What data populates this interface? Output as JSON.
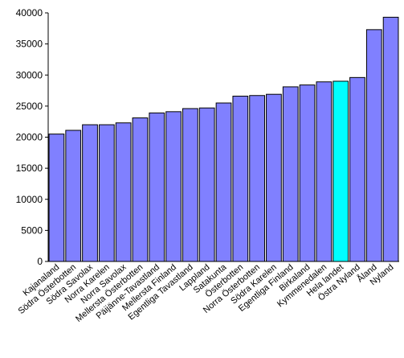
{
  "chart_data": {
    "type": "bar",
    "title": "",
    "xlabel": "",
    "ylabel": "",
    "ylim": [
      0,
      40000
    ],
    "yticks": [
      0,
      5000,
      10000,
      15000,
      20000,
      25000,
      30000,
      35000,
      40000
    ],
    "grid": false,
    "legend": "none",
    "categories": [
      "Kajanaland",
      "Södra Österbotten",
      "Södra Savolax",
      "Norra Karelen",
      "Norra Savolax",
      "Mellersta Österbotten",
      "Päijänne-Tavastland",
      "Mellersta Finland",
      "Egentliga Tavastland",
      "Lappland",
      "Satakunta",
      "Österbotten",
      "Norra Österbotten",
      "Södra Karelen",
      "Egentliga Finland",
      "Birkaland",
      "Kymmenedalen",
      "Hela landet",
      "Östra Nyland",
      "Åland",
      "Nyland"
    ],
    "values": [
      20500,
      21100,
      22000,
      22000,
      22300,
      23100,
      23900,
      24100,
      24600,
      24700,
      25500,
      26600,
      26700,
      26900,
      28100,
      28400,
      28900,
      29000,
      29600,
      37300,
      39300
    ],
    "highlight": "Hela landet",
    "colors": {
      "bar": "#8080ff",
      "highlight": "#00ffff",
      "bar_stroke": "#000000",
      "axis": "#000000"
    }
  }
}
